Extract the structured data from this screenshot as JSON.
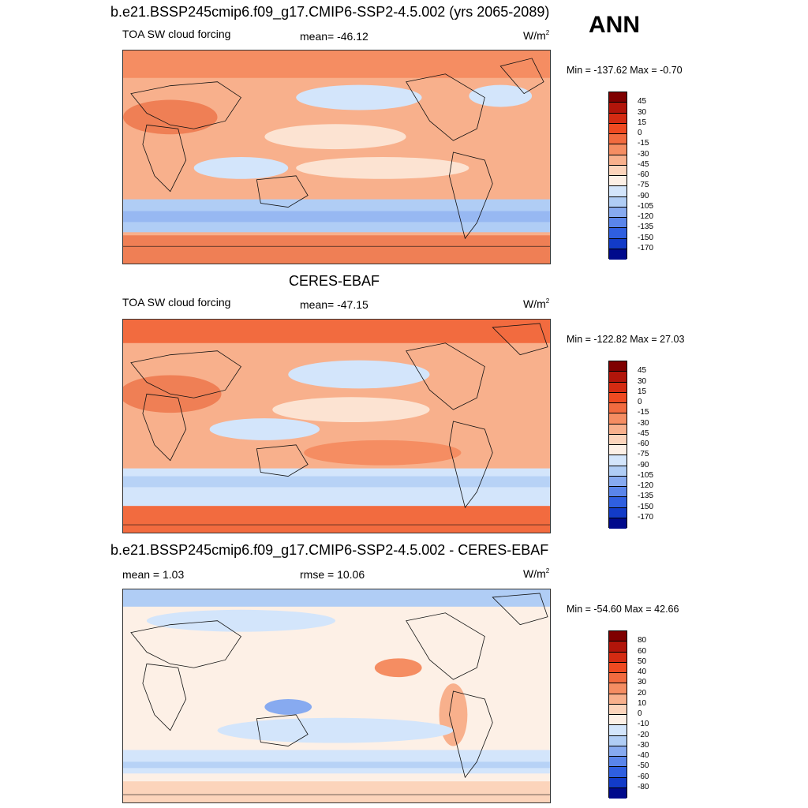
{
  "season": "ANN",
  "panels": [
    {
      "title": "b.e21.BSSP245cmip6.f09_g17.CMIP6-SSP2-4.5.002 (yrs 2065-2089)",
      "left_label": "TOA SW cloud forcing",
      "center_label": "mean= -46.12",
      "units_base": "W/m",
      "units_sup": "2",
      "minmax": "Min = -137.62 Max =  -0.70",
      "colorbar_labels": [
        "45",
        "30",
        "15",
        "0",
        "-15",
        "-30",
        "-45",
        "-60",
        "-75",
        "-90",
        "-105",
        "-120",
        "-135",
        "-150",
        "-170"
      ]
    },
    {
      "title": "CERES-EBAF",
      "left_label": "TOA SW cloud forcing",
      "center_label": "mean= -47.15",
      "units_base": "W/m",
      "units_sup": "2",
      "minmax": "Min = -122.82 Max =  27.03",
      "colorbar_labels": [
        "45",
        "30",
        "15",
        "0",
        "-15",
        "-30",
        "-45",
        "-60",
        "-75",
        "-90",
        "-105",
        "-120",
        "-135",
        "-150",
        "-170"
      ]
    },
    {
      "title": "b.e21.BSSP245cmip6.f09_g17.CMIP6-SSP2-4.5.002 - CERES-EBAF",
      "left_label": "mean =   1.03",
      "center_label": "rmse =  10.06",
      "units_base": "W/m",
      "units_sup": "2",
      "minmax": "Min = -54.60 Max =  42.66",
      "colorbar_labels": [
        "80",
        "60",
        "50",
        "40",
        "30",
        "20",
        "10",
        "0",
        "-10",
        "-20",
        "-30",
        "-40",
        "-50",
        "-60",
        "-80"
      ]
    }
  ],
  "colors": {
    "fill16": [
      "#7f0000",
      "#b2150a",
      "#d42b12",
      "#ef4a21",
      "#f26b3f",
      "#f58d62",
      "#f8b08c",
      "#fcd4bb",
      "#fdf0e6",
      "#d3e5fb",
      "#b0cdf5",
      "#87aaf0",
      "#5a85ea",
      "#2f5fe0",
      "#123bc8",
      "#000a8c"
    ],
    "map_warm": "#ef7f55",
    "map_neutral": "#fce3d2",
    "map_cool": "#b7d2f7",
    "coast": "#111111"
  }
}
